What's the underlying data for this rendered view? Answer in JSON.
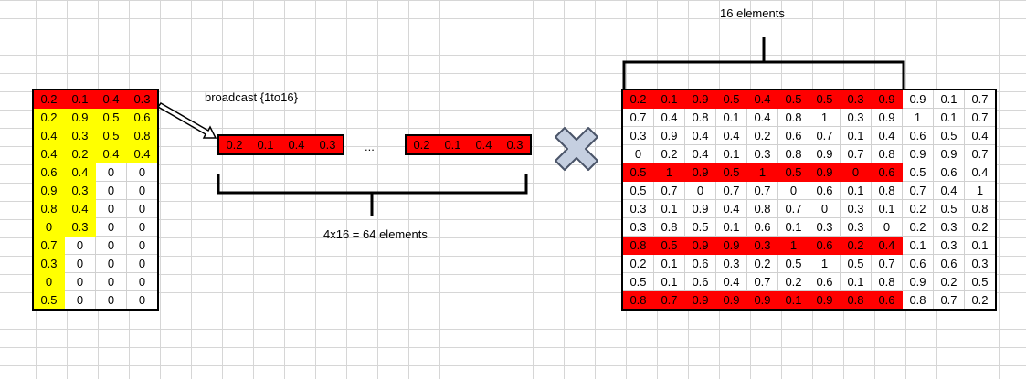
{
  "left_matrix": {
    "rows": [
      [
        "0.2",
        "0.1",
        "0.4",
        "0.3"
      ],
      [
        "0.2",
        "0.9",
        "0.5",
        "0.6"
      ],
      [
        "0.4",
        "0.3",
        "0.5",
        "0.8"
      ],
      [
        "0.4",
        "0.2",
        "0.4",
        "0.4"
      ],
      [
        "0.6",
        "0.4",
        "0",
        "0"
      ],
      [
        "0.9",
        "0.3",
        "0",
        "0"
      ],
      [
        "0.8",
        "0.4",
        "0",
        "0"
      ],
      [
        "0",
        "0.3",
        "0",
        "0"
      ],
      [
        "0.7",
        "0",
        "0",
        "0"
      ],
      [
        "0.3",
        "0",
        "0",
        "0"
      ],
      [
        "0",
        "0",
        "0",
        "0"
      ],
      [
        "0.5",
        "0",
        "0",
        "0"
      ]
    ],
    "highlight_row": 0,
    "yellow_counts": [
      0,
      4,
      4,
      4,
      2,
      2,
      2,
      2,
      1,
      1,
      1,
      1
    ],
    "highlight_color": "#ff0000",
    "yellow_color": "#ffff00"
  },
  "broadcast": {
    "label": "broadcast {1to16}",
    "values": [
      "0.2",
      "0.1",
      "0.4",
      "0.3"
    ],
    "ellipsis": "...",
    "caption": "4x16 = 64 elements"
  },
  "operator": {
    "icon": "multiply-cross-icon",
    "color": "#c5cfe0"
  },
  "right_matrix": {
    "top_label": "16 elements",
    "highlight_rows": [
      0,
      4,
      8,
      11
    ],
    "highlight_cols": 9,
    "rows": [
      [
        "0.2",
        "0.1",
        "0.9",
        "0.5",
        "0.4",
        "0.5",
        "0.5",
        "0.3",
        "0.9",
        "0.9",
        "0.1",
        "0.7"
      ],
      [
        "0.7",
        "0.4",
        "0.8",
        "0.1",
        "0.4",
        "0.8",
        "1",
        "0.3",
        "0.9",
        "1",
        "0.1",
        "0.7"
      ],
      [
        "0.3",
        "0.9",
        "0.4",
        "0.4",
        "0.2",
        "0.6",
        "0.7",
        "0.1",
        "0.4",
        "0.6",
        "0.5",
        "0.4"
      ],
      [
        "0",
        "0.2",
        "0.4",
        "0.1",
        "0.3",
        "0.8",
        "0.9",
        "0.7",
        "0.8",
        "0.9",
        "0.9",
        "0.7"
      ],
      [
        "0.5",
        "1",
        "0.9",
        "0.5",
        "1",
        "0.5",
        "0.9",
        "0",
        "0.6",
        "0.5",
        "0.6",
        "0.4"
      ],
      [
        "0.5",
        "0.7",
        "0",
        "0.7",
        "0.7",
        "0",
        "0.6",
        "0.1",
        "0.8",
        "0.7",
        "0.4",
        "1"
      ],
      [
        "0.3",
        "0.1",
        "0.9",
        "0.4",
        "0.8",
        "0.7",
        "0",
        "0.3",
        "0.1",
        "0.2",
        "0.5",
        "0.8"
      ],
      [
        "0.3",
        "0.8",
        "0.5",
        "0.1",
        "0.6",
        "0.1",
        "0.3",
        "0.3",
        "0",
        "0.2",
        "0.3",
        "0.2"
      ],
      [
        "0.8",
        "0.5",
        "0.9",
        "0.9",
        "0.3",
        "1",
        "0.6",
        "0.2",
        "0.4",
        "0.1",
        "0.3",
        "0.1"
      ],
      [
        "0.2",
        "0.1",
        "0.6",
        "0.3",
        "0.2",
        "0.5",
        "1",
        "0.5",
        "0.7",
        "0.6",
        "0.6",
        "0.3"
      ],
      [
        "0.5",
        "0.1",
        "0.6",
        "0.4",
        "0.7",
        "0.2",
        "0.6",
        "0.1",
        "0.8",
        "0.9",
        "0.2",
        "0.5"
      ],
      [
        "0.8",
        "0.7",
        "0.9",
        "0.9",
        "0.9",
        "0.1",
        "0.9",
        "0.8",
        "0.6",
        "0.8",
        "0.7",
        "0.2"
      ]
    ]
  }
}
